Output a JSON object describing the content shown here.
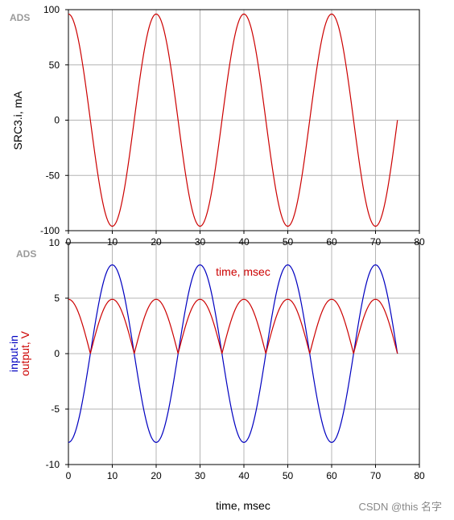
{
  "colors": {
    "red": "#cc0000",
    "blue": "#0000c0",
    "grid": "#b4b4b4",
    "text": "#000000"
  },
  "watermark": "CSDN @this 名字",
  "chart_data": [
    {
      "type": "line",
      "badge": "ADS",
      "xlabel": "time, msec",
      "ylabel": "SRC3.i, mA",
      "xlim": [
        0,
        80
      ],
      "ylim": [
        -100,
        100
      ],
      "xticks": [
        0,
        10,
        20,
        30,
        40,
        50,
        60,
        70,
        80
      ],
      "yticks": [
        100,
        50,
        0,
        -50,
        -100
      ],
      "x_end": 75,
      "series": [
        {
          "label": "SRC3.i",
          "color": "#cc0000",
          "shape": "sine",
          "amplitude": 96,
          "period": 20,
          "phase_deg": 90,
          "x_end": 75
        }
      ]
    },
    {
      "type": "line",
      "badge": "ADS",
      "xlabel": "time, msec",
      "ylabel_lines": [
        "input-in",
        "output, V"
      ],
      "xlim": [
        0,
        80
      ],
      "ylim": [
        -10,
        10
      ],
      "xticks": [
        0,
        10,
        20,
        30,
        40,
        50,
        60,
        70,
        80
      ],
      "yticks": [
        10,
        5,
        0,
        -5,
        -10
      ],
      "x_end": 75,
      "series": [
        {
          "label": "input-in",
          "color": "#0000c0",
          "shape": "sine",
          "amplitude": 8,
          "period": 20,
          "phase_deg": -90,
          "x_end": 75
        },
        {
          "label": "output",
          "color": "#cc0000",
          "shape": "abs-sine",
          "amplitude": 4.9,
          "period": 20,
          "phase_deg": 90,
          "x_end": 75
        }
      ]
    }
  ]
}
